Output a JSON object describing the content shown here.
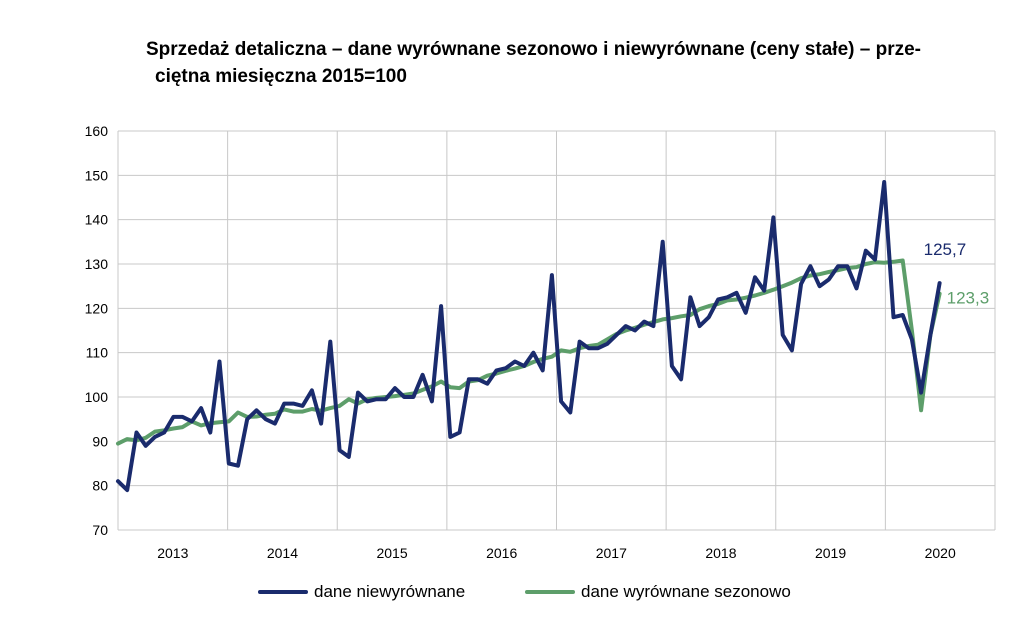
{
  "chart_data": {
    "type": "line",
    "title_line1": "Sprzedaż detaliczna – dane wyrównane sezonowo i niewyrównane (ceny stałe) – prze-",
    "title_line2": "ciętna miesięczna 2015=100",
    "xlabel": "",
    "ylabel": "",
    "ylim": [
      70,
      160
    ],
    "yticks": [
      "70",
      "80",
      "90",
      "100",
      "110",
      "120",
      "130",
      "140",
      "150",
      "160"
    ],
    "year_labels": [
      "2013",
      "2014",
      "2015",
      "2016",
      "2017",
      "2018",
      "2019",
      "2020"
    ],
    "months_first": "2013-01",
    "grid": true,
    "legend_position": "bottom",
    "series": [
      {
        "name": "dane niewyrównane",
        "color": "#1a2b6d",
        "end_label": "125,7",
        "values": [
          81,
          79,
          92,
          89,
          91,
          92,
          95.5,
          95.5,
          94.5,
          97.5,
          92,
          108,
          85,
          84.5,
          95,
          97,
          95,
          94,
          98.5,
          98.5,
          98,
          101.5,
          94,
          112.5,
          88,
          86.5,
          101,
          99,
          99.5,
          99.5,
          102,
          100,
          100,
          105,
          99,
          120.5,
          91,
          92,
          104,
          104,
          103,
          106,
          106.5,
          108,
          107,
          110,
          106,
          127.5,
          99,
          96.5,
          112.5,
          111,
          111,
          112,
          114,
          116,
          115,
          117,
          116,
          135,
          107,
          104,
          122.5,
          116,
          118,
          122,
          122.5,
          123.5,
          119,
          127,
          124,
          140.5,
          114,
          110.5,
          125.5,
          129.5,
          125,
          126.5,
          129.5,
          129.5,
          124.5,
          133,
          131,
          148.5,
          118,
          118.5,
          113,
          101,
          114,
          125.7
        ]
      },
      {
        "name": "dane wyrównane sezonowo",
        "color": "#5d9e6a",
        "end_label": "123,3",
        "values": [
          89.5,
          90.5,
          90.2,
          90.8,
          92.2,
          92.5,
          92.9,
          93.2,
          94.5,
          93.6,
          94.1,
          94.3,
          94.5,
          96.5,
          95.5,
          95.6,
          96,
          96.2,
          97.2,
          96.7,
          96.7,
          97.3,
          96.9,
          97.5,
          98,
          99.5,
          98.5,
          99.5,
          99.8,
          100,
          100.2,
          100.5,
          100.8,
          101.6,
          102.4,
          103.5,
          102.2,
          102,
          103.5,
          103.8,
          104.8,
          105.3,
          105.9,
          106.4,
          107,
          107.9,
          108.6,
          109.1,
          110.5,
          110.2,
          111,
          111.5,
          111.8,
          113,
          114.2,
          115,
          115.6,
          116.3,
          116.9,
          117.5,
          117.8,
          118.2,
          118.5,
          119.8,
          120.5,
          121,
          121.8,
          122,
          122.4,
          122.9,
          123.5,
          124.2,
          125,
          125.8,
          126.8,
          127.4,
          127.7,
          128.2,
          128.6,
          129.1,
          129.3,
          130,
          130.4,
          130.3,
          130.5,
          130.8,
          115,
          97,
          114,
          123.3
        ]
      }
    ]
  }
}
